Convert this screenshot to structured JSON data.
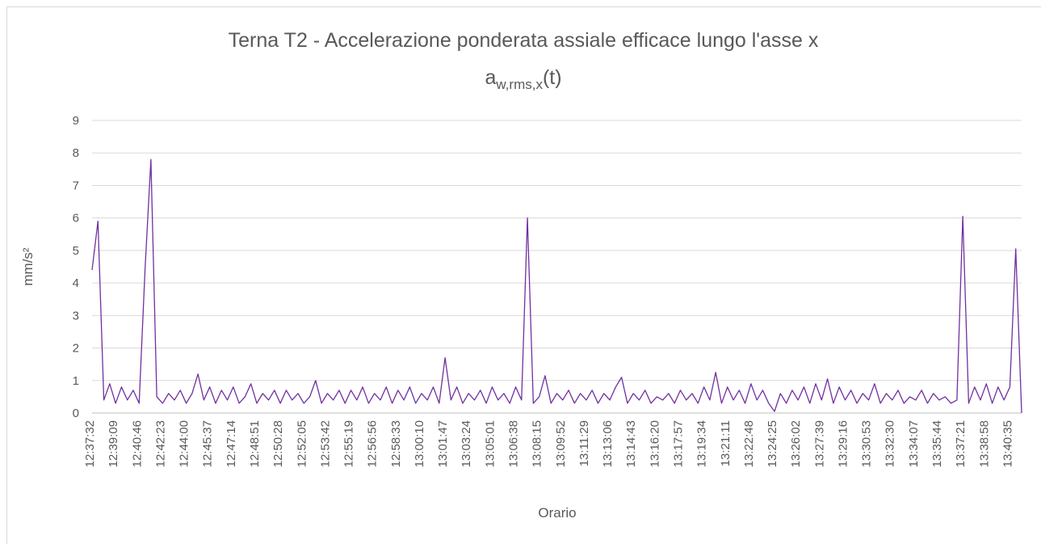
{
  "chart_data": {
    "type": "line",
    "title": "Terna T2 - Accelerazione ponderata assiale efficace lungo l'asse x",
    "subtitle": [
      "a",
      "w,rms,x",
      "(t)"
    ],
    "xlabel": "Orario",
    "ylabel": "mm/s²",
    "categories": [
      "12:37:32",
      null,
      null,
      null,
      "12:39:09",
      null,
      null,
      null,
      "12:40:46",
      null,
      null,
      null,
      "12:42:23",
      null,
      null,
      null,
      "12:44:00",
      null,
      null,
      null,
      "12:45:37",
      null,
      null,
      null,
      "12:47:14",
      null,
      null,
      null,
      "12:48:51",
      null,
      null,
      null,
      "12:50:28",
      null,
      null,
      null,
      "12:52:05",
      null,
      null,
      null,
      "12:53:42",
      null,
      null,
      null,
      "12:55:19",
      null,
      null,
      null,
      "12:56:56",
      null,
      null,
      null,
      "12:58:33",
      null,
      null,
      null,
      "13:00:10",
      null,
      null,
      null,
      "13:01:47",
      null,
      null,
      null,
      "13:03:24",
      null,
      null,
      null,
      "13:05:01",
      null,
      null,
      null,
      "13:06:38",
      null,
      null,
      null,
      "13:08:15",
      null,
      null,
      null,
      "13:09:52",
      null,
      null,
      null,
      "13:11:29",
      null,
      null,
      null,
      "13:13:06",
      null,
      null,
      null,
      "13:14:43",
      null,
      null,
      null,
      "13:16:20",
      null,
      null,
      null,
      "13:17:57",
      null,
      null,
      null,
      "13:19:34",
      null,
      null,
      null,
      "13:21:11",
      null,
      null,
      null,
      "13:22:48",
      null,
      null,
      null,
      "13:24:25",
      null,
      null,
      null,
      "13:26:02",
      null,
      null,
      null,
      "13:27:39",
      null,
      null,
      null,
      "13:29:16",
      null,
      null,
      null,
      "13:30:53",
      null,
      null,
      null,
      "13:32:30",
      null,
      null,
      null,
      "13:34:07",
      null,
      null,
      null,
      "13:35:44",
      null,
      null,
      null,
      "13:37:21",
      null,
      null,
      null,
      "13:38:58",
      null,
      null,
      null,
      "13:40:35",
      null,
      null
    ],
    "series": [
      {
        "name": "aw,rms,x",
        "color": "#7030a0",
        "values": [
          4.4,
          5.9,
          0.4,
          0.9,
          0.3,
          0.8,
          0.4,
          0.7,
          0.3,
          4.4,
          7.8,
          0.5,
          0.3,
          0.6,
          0.4,
          0.7,
          0.3,
          0.6,
          1.2,
          0.4,
          0.8,
          0.3,
          0.7,
          0.4,
          0.8,
          0.3,
          0.5,
          0.9,
          0.3,
          0.6,
          0.4,
          0.7,
          0.3,
          0.7,
          0.4,
          0.6,
          0.3,
          0.5,
          1.0,
          0.3,
          0.6,
          0.4,
          0.7,
          0.3,
          0.7,
          0.4,
          0.8,
          0.3,
          0.6,
          0.4,
          0.8,
          0.3,
          0.7,
          0.4,
          0.8,
          0.3,
          0.6,
          0.4,
          0.8,
          0.3,
          1.7,
          0.4,
          0.8,
          0.3,
          0.6,
          0.4,
          0.7,
          0.3,
          0.8,
          0.4,
          0.6,
          0.3,
          0.8,
          0.4,
          6.0,
          0.3,
          0.5,
          1.15,
          0.3,
          0.6,
          0.4,
          0.7,
          0.3,
          0.6,
          0.4,
          0.7,
          0.3,
          0.6,
          0.4,
          0.8,
          1.1,
          0.3,
          0.6,
          0.4,
          0.7,
          0.3,
          0.5,
          0.4,
          0.6,
          0.3,
          0.7,
          0.4,
          0.6,
          0.3,
          0.8,
          0.4,
          1.25,
          0.3,
          0.8,
          0.4,
          0.7,
          0.3,
          0.9,
          0.4,
          0.7,
          0.3,
          0.05,
          0.6,
          0.3,
          0.7,
          0.4,
          0.8,
          0.3,
          0.9,
          0.4,
          1.05,
          0.3,
          0.8,
          0.4,
          0.7,
          0.3,
          0.6,
          0.4,
          0.9,
          0.3,
          0.6,
          0.4,
          0.7,
          0.3,
          0.5,
          0.4,
          0.7,
          0.3,
          0.6,
          0.4,
          0.5,
          0.3,
          0.4,
          6.05,
          0.3,
          0.8,
          0.4,
          0.9,
          0.3,
          0.8,
          0.4,
          0.8,
          5.05,
          0
        ]
      }
    ],
    "ylim": [
      0,
      9
    ],
    "yticks": [
      0,
      1,
      2,
      3,
      4,
      5,
      6,
      7,
      8,
      9
    ],
    "grid": true
  }
}
